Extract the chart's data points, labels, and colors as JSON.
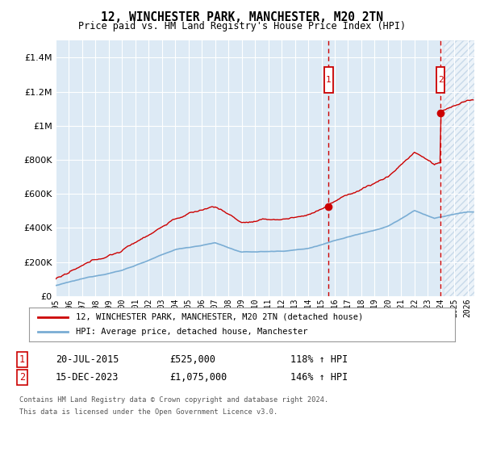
{
  "title": "12, WINCHESTER PARK, MANCHESTER, M20 2TN",
  "subtitle": "Price paid vs. HM Land Registry's House Price Index (HPI)",
  "legend_line1": "12, WINCHESTER PARK, MANCHESTER, M20 2TN (detached house)",
  "legend_line2": "HPI: Average price, detached house, Manchester",
  "annotation1_date": "20-JUL-2015",
  "annotation1_price": 525000,
  "annotation1_hpi": "118% ↑ HPI",
  "annotation2_date": "15-DEC-2023",
  "annotation2_price": 1075000,
  "annotation2_hpi": "146% ↑ HPI",
  "footnote1": "Contains HM Land Registry data © Crown copyright and database right 2024.",
  "footnote2": "This data is licensed under the Open Government Licence v3.0.",
  "house_color": "#cc0000",
  "hpi_color": "#7aadd4",
  "background_shade": "#ddeaf5",
  "dashed_line_color": "#cc0000",
  "ylim": [
    0,
    1500000
  ],
  "yticks": [
    0,
    200000,
    400000,
    600000,
    800000,
    1000000,
    1200000,
    1400000
  ],
  "xlim_start": 1995.0,
  "xlim_end": 2026.5,
  "sale1_year": 2015.54,
  "sale2_year": 2023.96,
  "sale1_price": 525000,
  "sale2_price": 1075000,
  "future_start": 2024.17
}
